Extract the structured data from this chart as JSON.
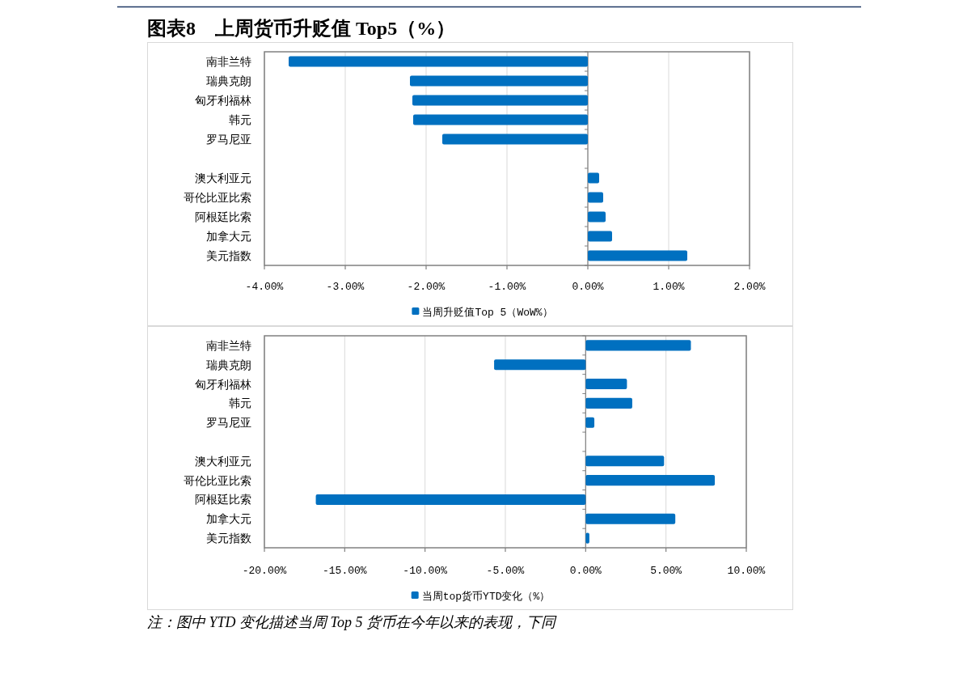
{
  "chart_data": [
    {
      "type": "bar",
      "orientation": "horizontal",
      "title": "图表8　上周货币升贬值 Top5（%）",
      "categories": [
        "南非兰特",
        "瑞典克朗",
        "匈牙利福林",
        "韩元",
        "罗马尼亚",
        null,
        "澳大利亚元",
        "哥伦比亚比索",
        "阿根廷比索",
        "加拿大元",
        "美元指数"
      ],
      "series": [
        {
          "name": "当周升贬值Top 5（WoW%）",
          "color": "#0070c0",
          "values": [
            -3.7,
            -2.2,
            -2.17,
            -2.16,
            -1.8,
            null,
            0.14,
            0.19,
            0.22,
            0.3,
            1.23
          ]
        }
      ],
      "xlim": [
        -4,
        2
      ],
      "xticks": [
        {
          "value": -4,
          "label": "-4.00%"
        },
        {
          "value": -3,
          "label": "-3.00%"
        },
        {
          "value": -2,
          "label": "-2.00%"
        },
        {
          "value": -1,
          "label": "-1.00%"
        },
        {
          "value": 0,
          "label": "0.00%"
        },
        {
          "value": 1,
          "label": "1.00%"
        },
        {
          "value": 2,
          "label": "2.00%"
        }
      ],
      "grid": "x",
      "legend": "bottom"
    },
    {
      "type": "bar",
      "orientation": "horizontal",
      "categories": [
        "南非兰特",
        "瑞典克朗",
        "匈牙利福林",
        "韩元",
        "罗马尼亚",
        null,
        "澳大利亚元",
        "哥伦比亚比索",
        "阿根廷比索",
        "加拿大元",
        "美元指数"
      ],
      "series": [
        {
          "name": "当周top货币YTD变化（%）",
          "color": "#0070c0",
          "values": [
            6.55,
            -5.7,
            2.57,
            2.9,
            0.54,
            null,
            4.88,
            8.04,
            -16.8,
            5.58,
            0.23
          ]
        }
      ],
      "xlim": [
        -20,
        10
      ],
      "xticks": [
        {
          "value": -20,
          "label": "-20.00%"
        },
        {
          "value": -15,
          "label": "-15.00%"
        },
        {
          "value": -10,
          "label": "-10.00%"
        },
        {
          "value": -5,
          "label": "-5.00%"
        },
        {
          "value": 0,
          "label": "0.00%"
        },
        {
          "value": 5,
          "label": "5.00%"
        },
        {
          "value": 10,
          "label": "10.00%"
        }
      ],
      "grid": "x",
      "legend": "bottom",
      "annotations": [
        "注：图中 YTD 变化描述当周 Top 5  货币在今年以来的表现，下同"
      ]
    }
  ]
}
